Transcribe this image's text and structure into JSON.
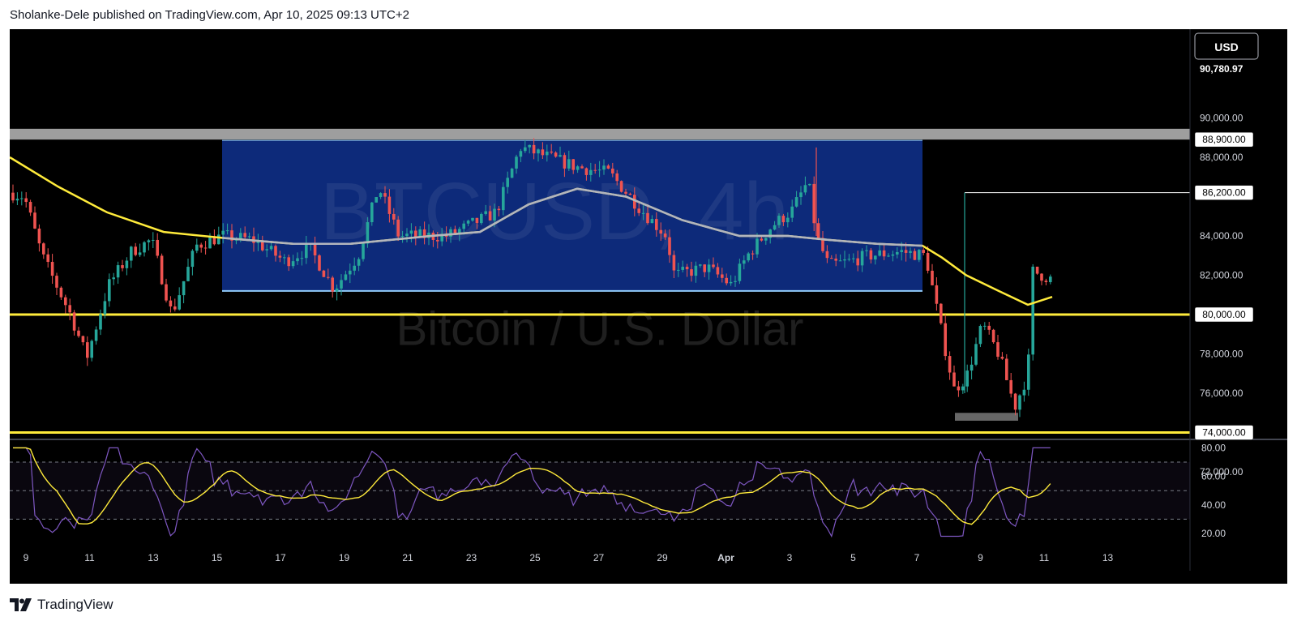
{
  "header": {
    "text": "Sholanke-Dele published on TradingView.com, Apr 10, 2025 09:13 UTC+2"
  },
  "footer": {
    "brand": "TradingView"
  },
  "watermark": {
    "symbol": "BTCUSD, 4h",
    "name": "Bitcoin / U.S. Dollar"
  },
  "chart_data": {
    "type": "candlestick",
    "currency_button": "USD",
    "last_price_label": "90,780.97",
    "price_ticks": [
      "90,000.00",
      "88,000.00",
      "84,000.00",
      "82,000.00",
      "78,000.00",
      "76,000.00",
      "72,000.00"
    ],
    "price_tick_values": [
      90000,
      88000,
      84000,
      82000,
      78000,
      76000,
      72000
    ],
    "price_badges": [
      {
        "label": "88,900.00",
        "value": 88900
      },
      {
        "label": "86,200.00",
        "value": 86200
      },
      {
        "label": "80,000.00",
        "value": 80000
      },
      {
        "label": "74,000.00",
        "value": 74000
      }
    ],
    "date_ticks": [
      "9",
      "11",
      "13",
      "15",
      "17",
      "19",
      "21",
      "23",
      "25",
      "27",
      "29",
      "Apr",
      "3",
      "5",
      "7",
      "9",
      "11",
      "13"
    ],
    "rsi_ticks": [
      "80.00",
      "60.00",
      "40.00",
      "20.00"
    ],
    "rsi_tick_values": [
      80,
      60,
      40,
      20
    ],
    "colors": {
      "up": "#26a69a",
      "down": "#ef5350",
      "ma": "#ffeb3b",
      "ma_inside_range": "#b2b5be",
      "range_box": "#0d2a7a",
      "resistance_band": "#9e9e9e",
      "level": "#ffeb3b",
      "rsi": "#7e57c2",
      "rsi_ma": "#ffeb3b"
    }
  }
}
